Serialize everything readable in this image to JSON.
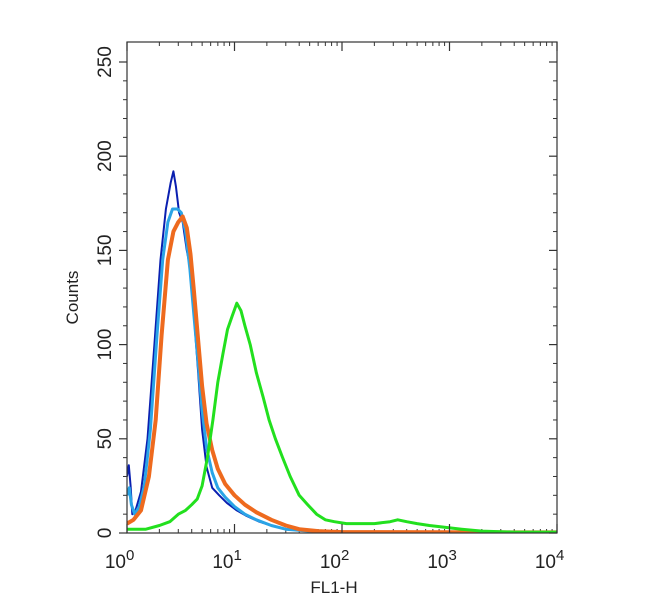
{
  "chart_data": {
    "type": "line",
    "title": "",
    "xlabel": "FL1-H",
    "ylabel": "Counts",
    "x_scale": "log",
    "xlim": [
      1,
      10000
    ],
    "ylim": [
      0,
      260
    ],
    "grid": false,
    "x_ticks": [
      {
        "base": "10",
        "exp": "0",
        "value": 1
      },
      {
        "base": "10",
        "exp": "1",
        "value": 10
      },
      {
        "base": "10",
        "exp": "2",
        "value": 100
      },
      {
        "base": "10",
        "exp": "3",
        "value": 1000
      },
      {
        "base": "10",
        "exp": "4",
        "value": 10000
      }
    ],
    "y_ticks": [
      {
        "label": "0",
        "value": 0
      },
      {
        "label": "50",
        "value": 50
      },
      {
        "label": "100",
        "value": 100
      },
      {
        "label": "150",
        "value": 150
      },
      {
        "label": "200",
        "value": 200
      },
      {
        "label": "250",
        "value": 250
      }
    ],
    "series": [
      {
        "color": "#0a1fb0",
        "stroke": 2,
        "points": [
          [
            1.0,
            30
          ],
          [
            1.04,
            36
          ],
          [
            1.08,
            25
          ],
          [
            1.12,
            10
          ],
          [
            1.2,
            12
          ],
          [
            1.35,
            22
          ],
          [
            1.55,
            50
          ],
          [
            1.8,
            100
          ],
          [
            2.05,
            145
          ],
          [
            2.3,
            172
          ],
          [
            2.55,
            186
          ],
          [
            2.7,
            192
          ],
          [
            2.85,
            184
          ],
          [
            3.05,
            170
          ],
          [
            3.3,
            165
          ],
          [
            3.6,
            150
          ],
          [
            3.9,
            140
          ],
          [
            4.2,
            115
          ],
          [
            4.6,
            85
          ],
          [
            5.0,
            55
          ],
          [
            5.5,
            35
          ],
          [
            6.2,
            24
          ],
          [
            7.2,
            20
          ],
          [
            8.5,
            16
          ],
          [
            10.5,
            12
          ],
          [
            13,
            9
          ],
          [
            17,
            6
          ],
          [
            22,
            4
          ],
          [
            30,
            2
          ],
          [
            50,
            1
          ],
          [
            100,
            0.5
          ],
          [
            10000,
            0.3
          ]
        ]
      },
      {
        "color": "#2aa4e6",
        "stroke": 3,
        "points": [
          [
            1.0,
            20
          ],
          [
            1.05,
            24
          ],
          [
            1.1,
            15
          ],
          [
            1.18,
            10
          ],
          [
            1.3,
            14
          ],
          [
            1.45,
            25
          ],
          [
            1.65,
            55
          ],
          [
            1.9,
            105
          ],
          [
            2.15,
            145
          ],
          [
            2.4,
            165
          ],
          [
            2.65,
            172
          ],
          [
            2.95,
            172
          ],
          [
            3.2,
            170
          ],
          [
            3.5,
            160
          ],
          [
            3.85,
            140
          ],
          [
            4.2,
            115
          ],
          [
            4.6,
            90
          ],
          [
            5.0,
            65
          ],
          [
            5.5,
            45
          ],
          [
            6.2,
            32
          ],
          [
            7.0,
            24
          ],
          [
            8.2,
            19
          ],
          [
            10,
            14
          ],
          [
            12.5,
            10
          ],
          [
            16,
            7
          ],
          [
            22,
            4
          ],
          [
            30,
            2
          ],
          [
            50,
            1
          ],
          [
            100,
            0.5
          ],
          [
            10000,
            0.3
          ]
        ]
      },
      {
        "color": "#ee6a1e",
        "stroke": 4,
        "points": [
          [
            1.0,
            5
          ],
          [
            1.15,
            7
          ],
          [
            1.35,
            12
          ],
          [
            1.6,
            30
          ],
          [
            1.85,
            60
          ],
          [
            2.1,
            105
          ],
          [
            2.4,
            145
          ],
          [
            2.7,
            160
          ],
          [
            3.0,
            165
          ],
          [
            3.3,
            168
          ],
          [
            3.6,
            162
          ],
          [
            3.9,
            148
          ],
          [
            4.2,
            128
          ],
          [
            4.6,
            102
          ],
          [
            5.0,
            78
          ],
          [
            5.5,
            58
          ],
          [
            6.2,
            44
          ],
          [
            7.0,
            34
          ],
          [
            8.2,
            26
          ],
          [
            10,
            20
          ],
          [
            12.5,
            15
          ],
          [
            16,
            11
          ],
          [
            22,
            7
          ],
          [
            30,
            4
          ],
          [
            40,
            2
          ],
          [
            60,
            1
          ],
          [
            100,
            0.5
          ],
          [
            10000,
            0.3
          ]
        ]
      },
      {
        "color": "#22e01e",
        "stroke": 3,
        "points": [
          [
            1.0,
            2
          ],
          [
            1.5,
            2
          ],
          [
            2.0,
            4
          ],
          [
            2.5,
            6
          ],
          [
            3.0,
            10
          ],
          [
            3.5,
            12
          ],
          [
            4.0,
            15
          ],
          [
            4.5,
            18
          ],
          [
            5.0,
            25
          ],
          [
            5.6,
            40
          ],
          [
            6.3,
            60
          ],
          [
            7.0,
            80
          ],
          [
            7.8,
            95
          ],
          [
            8.6,
            108
          ],
          [
            9.5,
            115
          ],
          [
            10.5,
            122
          ],
          [
            11.5,
            118
          ],
          [
            12.5,
            110
          ],
          [
            14,
            100
          ],
          [
            16,
            85
          ],
          [
            18.5,
            72
          ],
          [
            21,
            60
          ],
          [
            24,
            50
          ],
          [
            28,
            40
          ],
          [
            33,
            30
          ],
          [
            40,
            20
          ],
          [
            48,
            15
          ],
          [
            58,
            10
          ],
          [
            70,
            7
          ],
          [
            85,
            6
          ],
          [
            110,
            5
          ],
          [
            150,
            5
          ],
          [
            200,
            5
          ],
          [
            280,
            6
          ],
          [
            330,
            7
          ],
          [
            400,
            6
          ],
          [
            500,
            5
          ],
          [
            650,
            4
          ],
          [
            900,
            3
          ],
          [
            1300,
            2
          ],
          [
            2000,
            1
          ],
          [
            4000,
            0.5
          ],
          [
            10000,
            0.5
          ]
        ]
      }
    ]
  }
}
